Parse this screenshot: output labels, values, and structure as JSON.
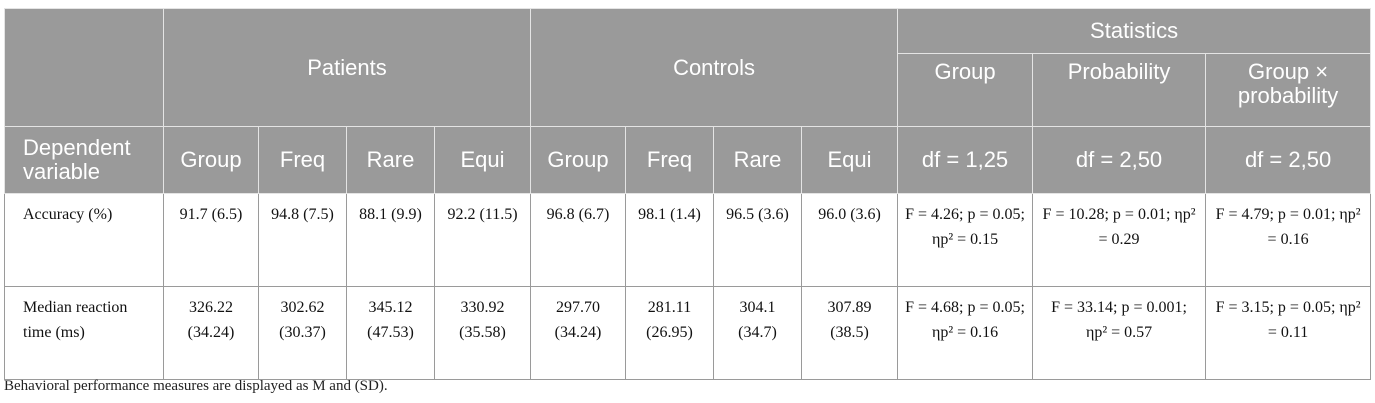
{
  "table": {
    "group_headers": {
      "patients": "Patients",
      "controls": "Controls",
      "statistics": "Statistics"
    },
    "stat_subheaders": {
      "group": "Group",
      "probability": "Probability",
      "interaction": "Group × probability"
    },
    "column_headers": [
      "Dependent variable",
      "Group",
      "Freq",
      "Rare",
      "Equi",
      "Group",
      "Freq",
      "Rare",
      "Equi",
      "df = 1,25",
      "df = 2,50",
      "df = 2,50"
    ],
    "rows": [
      {
        "label": "Accuracy (%)",
        "cells": [
          "91.7 (6.5)",
          "94.8 (7.5)",
          "88.1 (9.9)",
          "92.2 (11.5)",
          "96.8 (6.7)",
          "98.1 (1.4)",
          "96.5 (3.6)",
          "96.0 (3.6)",
          "F = 4.26; p = 0.05; ηp² = 0.15",
          "F = 10.28; p = 0.01; ηp² = 0.29",
          "F = 4.79; p = 0.01; ηp² = 0.16"
        ]
      },
      {
        "label": "Median reaction time (ms)",
        "cells": [
          "326.22 (34.24)",
          "302.62 (30.37)",
          "345.12 (47.53)",
          "330.92 (35.58)",
          "297.70 (34.24)",
          "281.11 (26.95)",
          "304.1 (34.7)",
          "307.89 (38.5)",
          "F = 4.68; p = 0.05; ηp² = 0.16",
          "F = 33.14; p = 0.001; ηp² = 0.57",
          "F = 3.15; p = 0.05; ηp² = 0.11"
        ]
      }
    ]
  },
  "footnote": "Behavioral performance measures are displayed as M and (SD)."
}
